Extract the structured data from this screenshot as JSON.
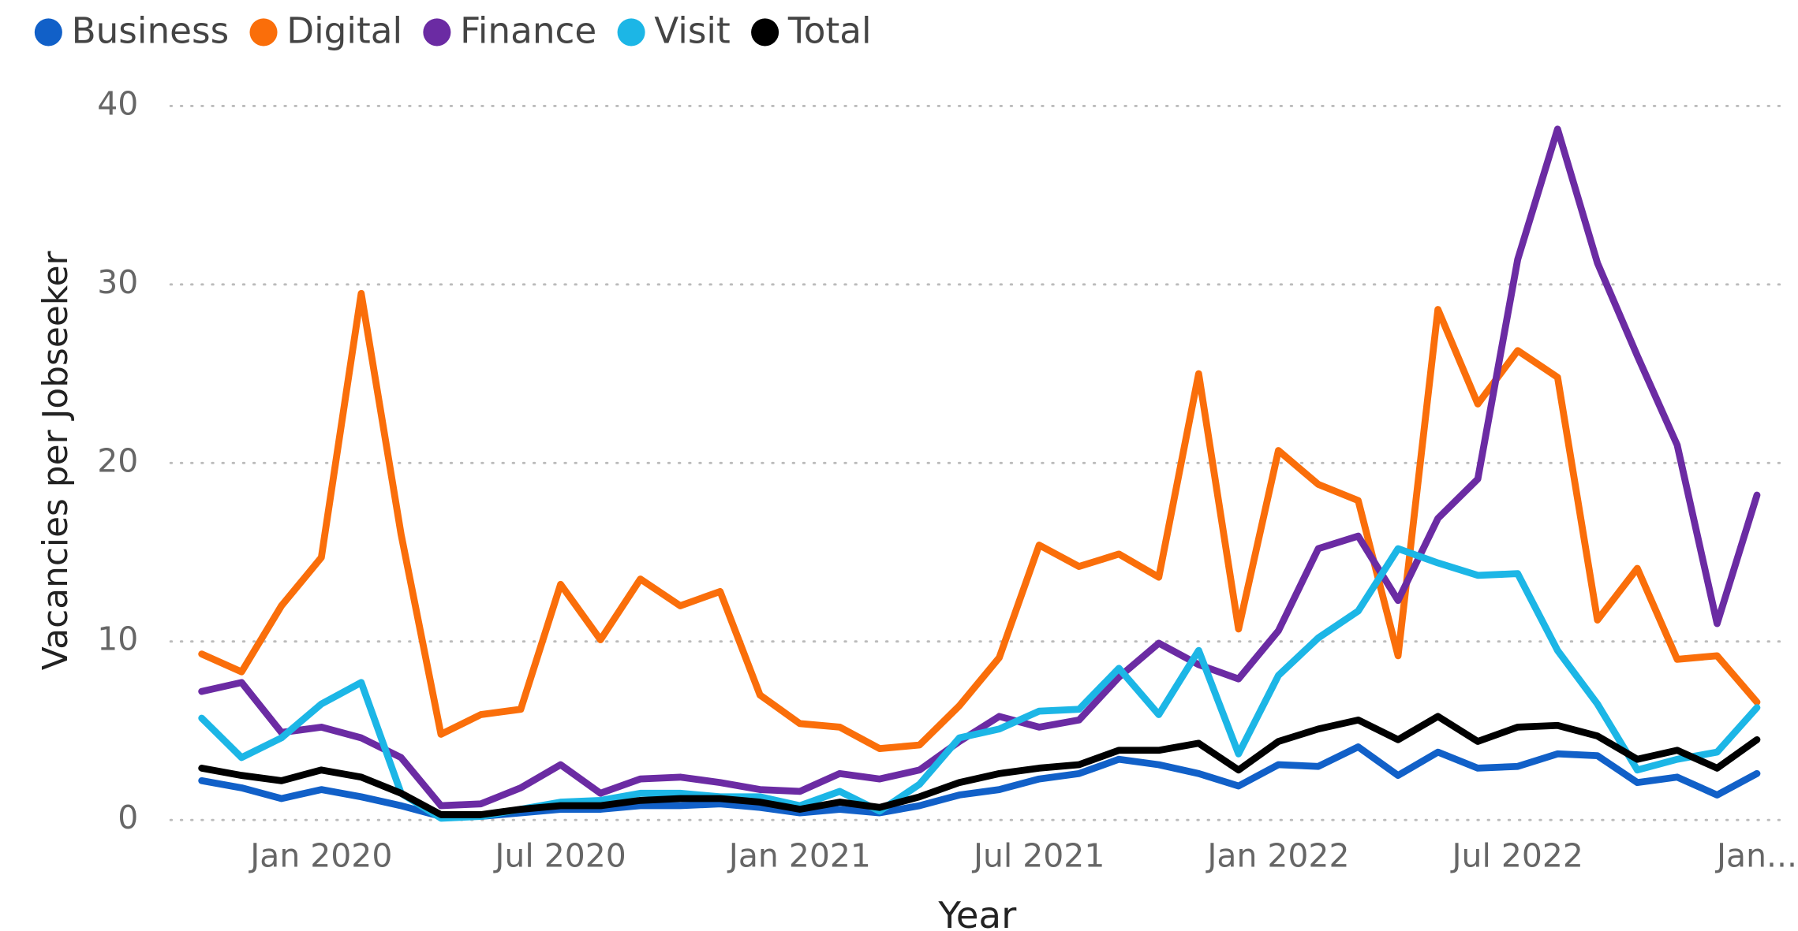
{
  "chart_data": {
    "type": "line",
    "x_label": "Year",
    "y_label": "Vacancies per Jobseeker",
    "categories": [
      null,
      null,
      null,
      "Jan 2020",
      null,
      null,
      null,
      null,
      null,
      "Jul 2020",
      null,
      null,
      null,
      null,
      null,
      "Jan 2021",
      null,
      null,
      null,
      null,
      null,
      "Jul 2021",
      null,
      null,
      null,
      null,
      null,
      "Jan 2022",
      null,
      null,
      null,
      null,
      null,
      "Jul 2022",
      null,
      null,
      null,
      null,
      null,
      "Jan..."
    ],
    "series": [
      {
        "name": "Business",
        "color": "#1160c8",
        "values": [
          2.2,
          1.8,
          1.2,
          1.7,
          1.3,
          0.8,
          0.2,
          0.2,
          0.4,
          0.6,
          0.6,
          0.8,
          0.8,
          0.9,
          0.7,
          0.4,
          0.6,
          0.4,
          0.8,
          1.4,
          1.7,
          2.3,
          2.6,
          3.4,
          3.1,
          2.6,
          1.9,
          3.1,
          3.0,
          4.1,
          2.5,
          3.8,
          2.9,
          3.0,
          3.7,
          3.6,
          2.1,
          2.4,
          1.4,
          2.6
        ]
      },
      {
        "name": "Digital",
        "color": "#fa6e0a",
        "values": [
          9.3,
          8.3,
          12,
          14.7,
          29.5,
          16,
          4.8,
          5.9,
          6.2,
          13.2,
          10.1,
          13.5,
          12,
          12.8,
          7,
          5.4,
          5.2,
          4,
          4.2,
          6.4,
          9.1,
          15.4,
          14.2,
          14.9,
          13.6,
          25,
          10.7,
          20.7,
          18.8,
          17.9,
          9.2,
          28.6,
          23.3,
          26.3,
          24.8,
          11.2,
          14.1,
          9,
          9.2,
          6.6
        ]
      },
      {
        "name": "Finance",
        "color": "#6b2ba3",
        "values": [
          7.2,
          7.7,
          4.9,
          5.2,
          4.6,
          3.5,
          0.8,
          0.9,
          1.8,
          3.1,
          1.5,
          2.3,
          2.4,
          2.1,
          1.7,
          1.6,
          2.6,
          2.3,
          2.8,
          4.4,
          5.8,
          5.2,
          5.6,
          8,
          9.9,
          8.7,
          7.9,
          10.6,
          15.2,
          15.9,
          12.3,
          16.9,
          19.1,
          31.4,
          38.7,
          31.2,
          26,
          21,
          11,
          18.2
        ]
      },
      {
        "name": "Visit",
        "color": "#1cb6e6",
        "values": [
          5.7,
          3.5,
          4.6,
          6.5,
          7.7,
          1.5,
          0.1,
          0.2,
          0.6,
          1,
          1.1,
          1.5,
          1.5,
          1.3,
          1.3,
          0.8,
          1.6,
          0.5,
          2,
          4.6,
          5.1,
          6.1,
          6.2,
          8.5,
          5.9,
          9.5,
          3.7,
          8.1,
          10.2,
          11.7,
          15.2,
          14.4,
          13.7,
          13.8,
          9.5,
          6.5,
          2.8,
          3.4,
          3.8,
          6.3
        ]
      },
      {
        "name": "Total",
        "color": "#000000",
        "values": [
          2.9,
          2.5,
          2.2,
          2.8,
          2.4,
          1.5,
          0.3,
          0.3,
          0.6,
          0.8,
          0.8,
          1.1,
          1.2,
          1.2,
          1,
          0.6,
          1,
          0.7,
          1.3,
          2.1,
          2.6,
          2.9,
          3.1,
          3.9,
          3.9,
          4.3,
          2.8,
          4.4,
          5.1,
          5.6,
          4.5,
          5.8,
          4.4,
          5.2,
          5.3,
          4.7,
          3.4,
          3.9,
          2.9,
          4.5
        ]
      }
    ],
    "ylim": [
      0,
      40
    ],
    "yticks": [
      0,
      10,
      20,
      30,
      40
    ],
    "grid": true,
    "legend": "top-left"
  }
}
